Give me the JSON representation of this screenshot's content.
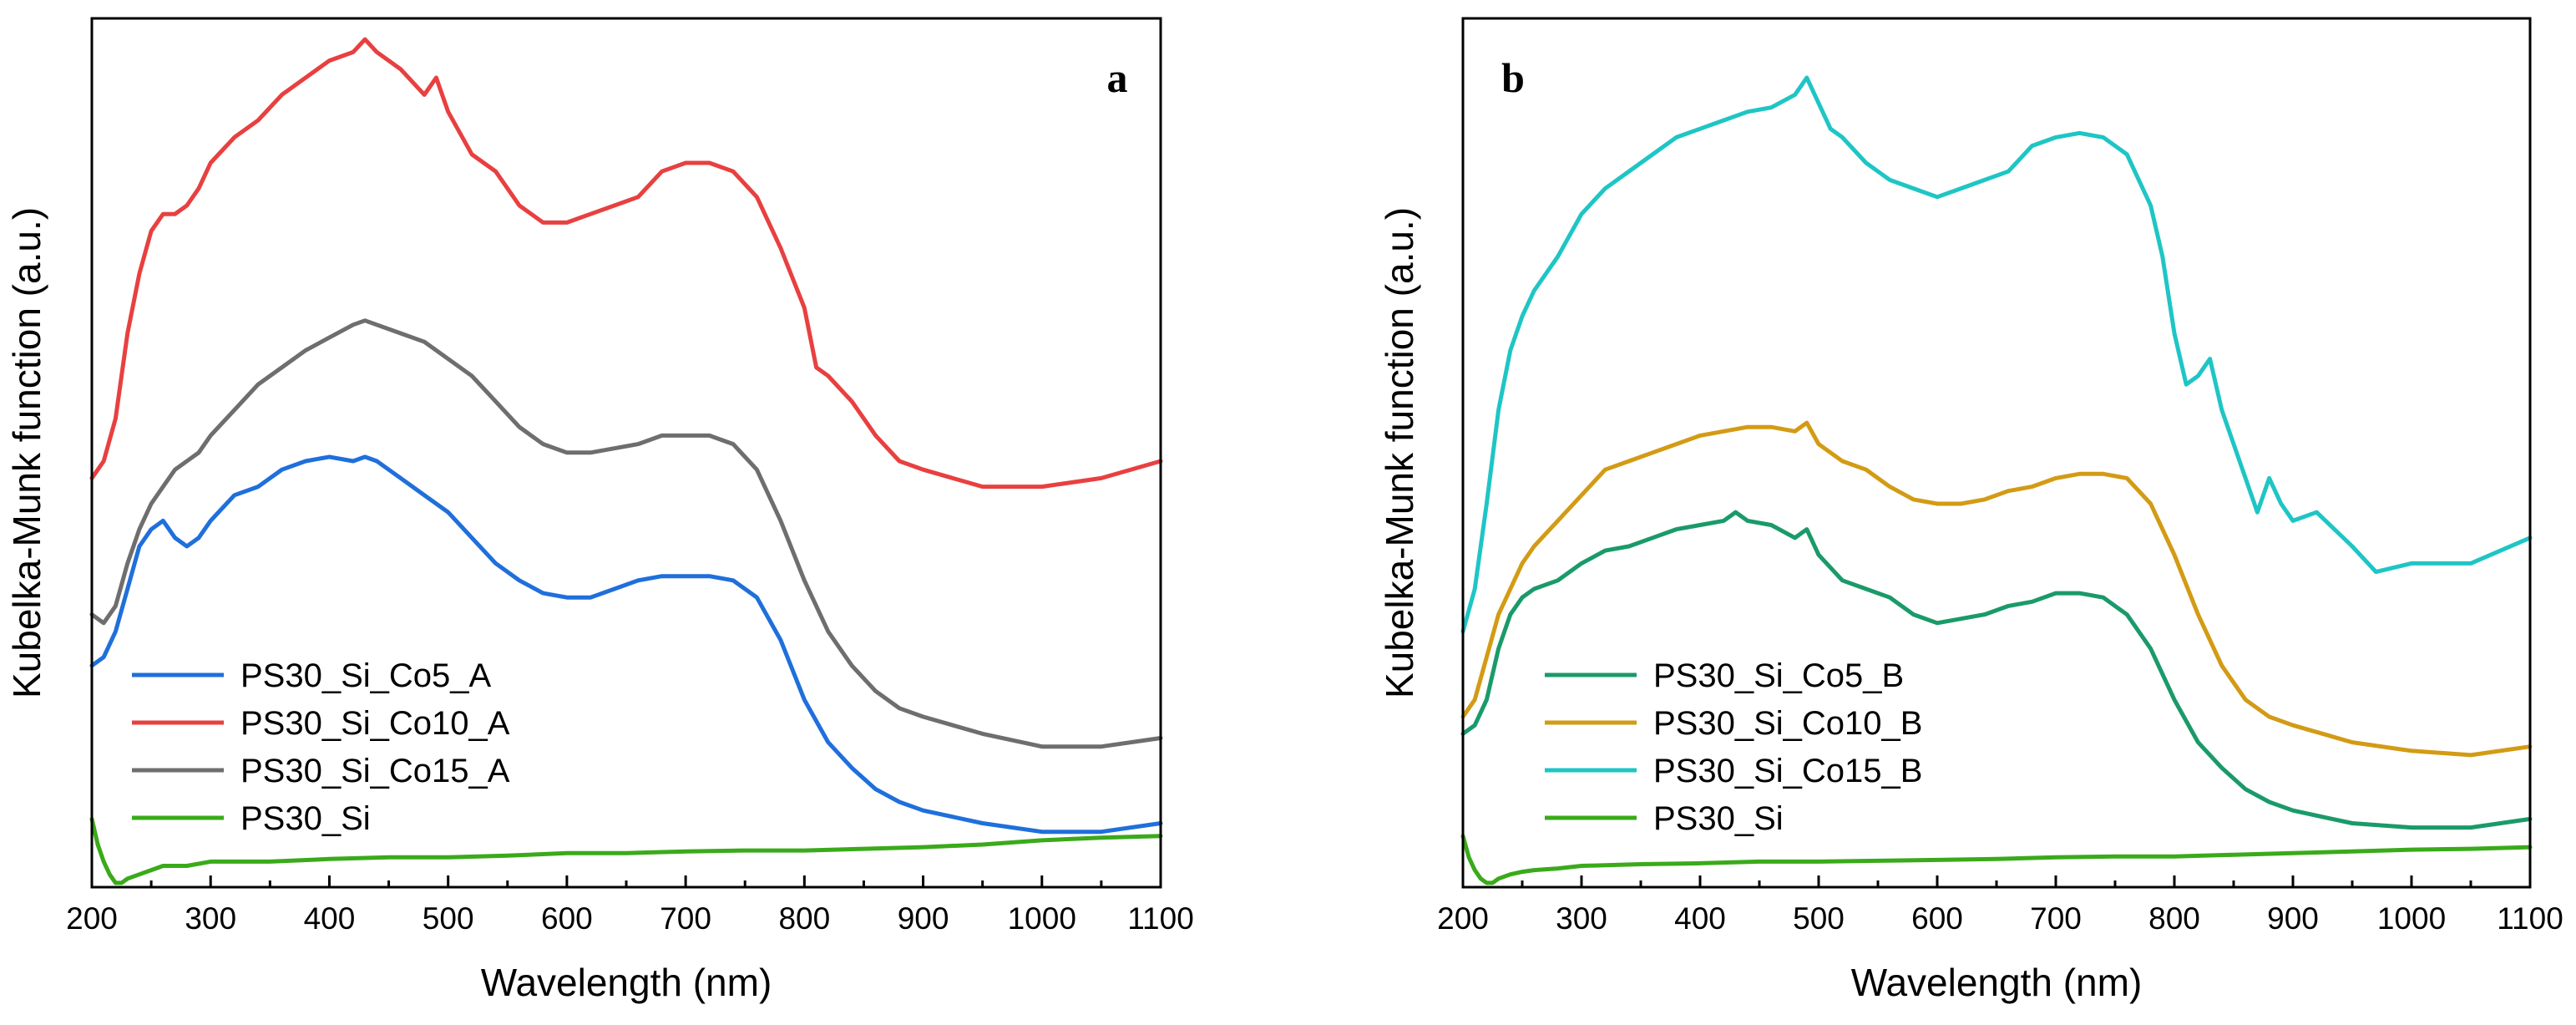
{
  "chart_data": [
    {
      "type": "line",
      "panel_label": "a",
      "xlabel": "Wavelength (nm)",
      "ylabel": "Kubelka-Munk function (a.u.)",
      "xlim": [
        200,
        1100
      ],
      "ylim": [
        0,
        1
      ],
      "xticks": [
        "200",
        "300",
        "400",
        "500",
        "600",
        "700",
        "800",
        "900",
        "1000",
        "1100"
      ],
      "yticks_shown": false,
      "legend_position": "bottom-left",
      "series": [
        {
          "name": "PS30_Si_Co5_A",
          "color": "#1f6fdc",
          "x": [
            200,
            210,
            220,
            230,
            240,
            250,
            260,
            270,
            280,
            290,
            300,
            320,
            340,
            360,
            380,
            400,
            420,
            430,
            440,
            460,
            480,
            500,
            520,
            540,
            560,
            580,
            600,
            620,
            640,
            660,
            680,
            700,
            720,
            740,
            760,
            780,
            800,
            820,
            840,
            860,
            880,
            900,
            950,
            1000,
            1050,
            1100
          ],
          "y": [
            0.26,
            0.27,
            0.3,
            0.35,
            0.4,
            0.42,
            0.43,
            0.41,
            0.4,
            0.41,
            0.43,
            0.46,
            0.47,
            0.49,
            0.5,
            0.505,
            0.5,
            0.505,
            0.5,
            0.48,
            0.46,
            0.44,
            0.41,
            0.38,
            0.36,
            0.345,
            0.34,
            0.34,
            0.35,
            0.36,
            0.365,
            0.365,
            0.365,
            0.36,
            0.34,
            0.29,
            0.22,
            0.17,
            0.14,
            0.115,
            0.1,
            0.09,
            0.075,
            0.065,
            0.065,
            0.075
          ]
        },
        {
          "name": "PS30_Si_Co10_A",
          "color": "#e84040",
          "x": [
            200,
            210,
            220,
            230,
            240,
            250,
            260,
            270,
            280,
            290,
            300,
            320,
            340,
            360,
            380,
            400,
            420,
            430,
            440,
            460,
            480,
            490,
            500,
            520,
            540,
            560,
            580,
            600,
            620,
            640,
            660,
            680,
            700,
            720,
            740,
            760,
            780,
            800,
            810,
            820,
            840,
            860,
            880,
            900,
            950,
            1000,
            1050,
            1100
          ],
          "y": [
            0.48,
            0.5,
            0.55,
            0.65,
            0.72,
            0.77,
            0.79,
            0.79,
            0.8,
            0.82,
            0.85,
            0.88,
            0.9,
            0.93,
            0.95,
            0.97,
            0.98,
            0.995,
            0.98,
            0.96,
            0.93,
            0.95,
            0.91,
            0.86,
            0.84,
            0.8,
            0.78,
            0.78,
            0.79,
            0.8,
            0.81,
            0.84,
            0.85,
            0.85,
            0.84,
            0.81,
            0.75,
            0.68,
            0.61,
            0.6,
            0.57,
            0.53,
            0.5,
            0.49,
            0.47,
            0.47,
            0.48,
            0.5
          ]
        },
        {
          "name": "PS30_Si_Co15_A",
          "color": "#6e6e6e",
          "x": [
            200,
            210,
            220,
            230,
            240,
            250,
            260,
            270,
            280,
            290,
            300,
            320,
            340,
            360,
            380,
            400,
            420,
            430,
            440,
            460,
            480,
            500,
            520,
            540,
            560,
            580,
            600,
            620,
            640,
            660,
            680,
            700,
            720,
            740,
            760,
            780,
            800,
            820,
            840,
            860,
            880,
            900,
            950,
            1000,
            1050,
            1100
          ],
          "y": [
            0.32,
            0.31,
            0.33,
            0.38,
            0.42,
            0.45,
            0.47,
            0.49,
            0.5,
            0.51,
            0.53,
            0.56,
            0.59,
            0.61,
            0.63,
            0.645,
            0.66,
            0.665,
            0.66,
            0.65,
            0.64,
            0.62,
            0.6,
            0.57,
            0.54,
            0.52,
            0.51,
            0.51,
            0.515,
            0.52,
            0.53,
            0.53,
            0.53,
            0.52,
            0.49,
            0.43,
            0.36,
            0.3,
            0.26,
            0.23,
            0.21,
            0.2,
            0.18,
            0.165,
            0.165,
            0.175
          ]
        },
        {
          "name": "PS30_Si",
          "color": "#3aaa1a",
          "x": [
            200,
            205,
            210,
            215,
            220,
            225,
            230,
            240,
            250,
            260,
            280,
            300,
            350,
            400,
            450,
            500,
            550,
            600,
            650,
            700,
            750,
            800,
            850,
            900,
            950,
            1000,
            1050,
            1100
          ],
          "y": [
            0.08,
            0.05,
            0.03,
            0.015,
            0.005,
            0.005,
            0.01,
            0.015,
            0.02,
            0.025,
            0.025,
            0.03,
            0.03,
            0.033,
            0.035,
            0.035,
            0.037,
            0.04,
            0.04,
            0.042,
            0.043,
            0.043,
            0.045,
            0.047,
            0.05,
            0.055,
            0.058,
            0.06
          ]
        }
      ]
    },
    {
      "type": "line",
      "panel_label": "b",
      "xlabel": "Wavelength (nm)",
      "ylabel": "Kubelka-Munk function (a.u.)",
      "xlim": [
        200,
        1100
      ],
      "ylim": [
        0,
        1
      ],
      "xticks": [
        "200",
        "300",
        "400",
        "500",
        "600",
        "700",
        "800",
        "900",
        "1000",
        "1100"
      ],
      "yticks_shown": false,
      "legend_position": "bottom-left",
      "series": [
        {
          "name": "PS30_Si_Co5_B",
          "color": "#1a9a6a",
          "x": [
            200,
            210,
            220,
            230,
            240,
            250,
            260,
            280,
            300,
            320,
            340,
            360,
            380,
            400,
            420,
            430,
            440,
            460,
            480,
            490,
            500,
            520,
            540,
            560,
            580,
            600,
            620,
            640,
            660,
            680,
            700,
            720,
            740,
            760,
            780,
            800,
            820,
            840,
            860,
            880,
            900,
            950,
            1000,
            1050,
            1100
          ],
          "y": [
            0.18,
            0.19,
            0.22,
            0.28,
            0.32,
            0.34,
            0.35,
            0.36,
            0.38,
            0.395,
            0.4,
            0.41,
            0.42,
            0.425,
            0.43,
            0.44,
            0.43,
            0.425,
            0.41,
            0.42,
            0.39,
            0.36,
            0.35,
            0.34,
            0.32,
            0.31,
            0.315,
            0.32,
            0.33,
            0.335,
            0.345,
            0.345,
            0.34,
            0.32,
            0.28,
            0.22,
            0.17,
            0.14,
            0.115,
            0.1,
            0.09,
            0.075,
            0.07,
            0.07,
            0.08
          ]
        },
        {
          "name": "PS30_Si_Co10_B",
          "color": "#d39b15",
          "x": [
            200,
            210,
            220,
            230,
            240,
            250,
            260,
            280,
            300,
            320,
            340,
            360,
            380,
            400,
            420,
            440,
            460,
            480,
            490,
            500,
            520,
            540,
            560,
            580,
            600,
            620,
            640,
            660,
            680,
            700,
            720,
            740,
            760,
            780,
            800,
            820,
            840,
            860,
            880,
            900,
            950,
            1000,
            1050,
            1100
          ],
          "y": [
            0.2,
            0.22,
            0.27,
            0.32,
            0.35,
            0.38,
            0.4,
            0.43,
            0.46,
            0.49,
            0.5,
            0.51,
            0.52,
            0.53,
            0.535,
            0.54,
            0.54,
            0.535,
            0.545,
            0.52,
            0.5,
            0.49,
            0.47,
            0.455,
            0.45,
            0.45,
            0.455,
            0.465,
            0.47,
            0.48,
            0.485,
            0.485,
            0.48,
            0.45,
            0.39,
            0.32,
            0.26,
            0.22,
            0.2,
            0.19,
            0.17,
            0.16,
            0.155,
            0.165
          ]
        },
        {
          "name": "PS30_Si_Co15_B",
          "color": "#1fc5c5",
          "x": [
            200,
            210,
            220,
            230,
            240,
            250,
            260,
            280,
            300,
            320,
            340,
            360,
            380,
            400,
            420,
            440,
            460,
            480,
            490,
            500,
            510,
            520,
            540,
            560,
            580,
            600,
            620,
            640,
            660,
            680,
            700,
            720,
            740,
            760,
            780,
            790,
            800,
            810,
            820,
            830,
            840,
            860,
            870,
            880,
            890,
            900,
            920,
            950,
            970,
            1000,
            1050,
            1100
          ],
          "y": [
            0.3,
            0.35,
            0.45,
            0.56,
            0.63,
            0.67,
            0.7,
            0.74,
            0.79,
            0.82,
            0.84,
            0.86,
            0.88,
            0.89,
            0.9,
            0.91,
            0.915,
            0.93,
            0.95,
            0.92,
            0.89,
            0.88,
            0.85,
            0.83,
            0.82,
            0.81,
            0.82,
            0.83,
            0.84,
            0.87,
            0.88,
            0.885,
            0.88,
            0.86,
            0.8,
            0.74,
            0.65,
            0.59,
            0.6,
            0.62,
            0.56,
            0.48,
            0.44,
            0.48,
            0.45,
            0.43,
            0.44,
            0.4,
            0.37,
            0.38,
            0.38,
            0.41
          ]
        },
        {
          "name": "PS30_Si",
          "color": "#3aaa1a",
          "x": [
            200,
            205,
            210,
            215,
            220,
            225,
            230,
            240,
            250,
            260,
            280,
            300,
            350,
            400,
            450,
            500,
            550,
            600,
            650,
            700,
            750,
            800,
            850,
            900,
            950,
            1000,
            1050,
            1100
          ],
          "y": [
            0.06,
            0.035,
            0.02,
            0.01,
            0.005,
            0.005,
            0.01,
            0.015,
            0.018,
            0.02,
            0.022,
            0.025,
            0.027,
            0.028,
            0.03,
            0.03,
            0.031,
            0.032,
            0.033,
            0.035,
            0.036,
            0.036,
            0.038,
            0.04,
            0.042,
            0.044,
            0.045,
            0.047
          ]
        }
      ]
    }
  ]
}
